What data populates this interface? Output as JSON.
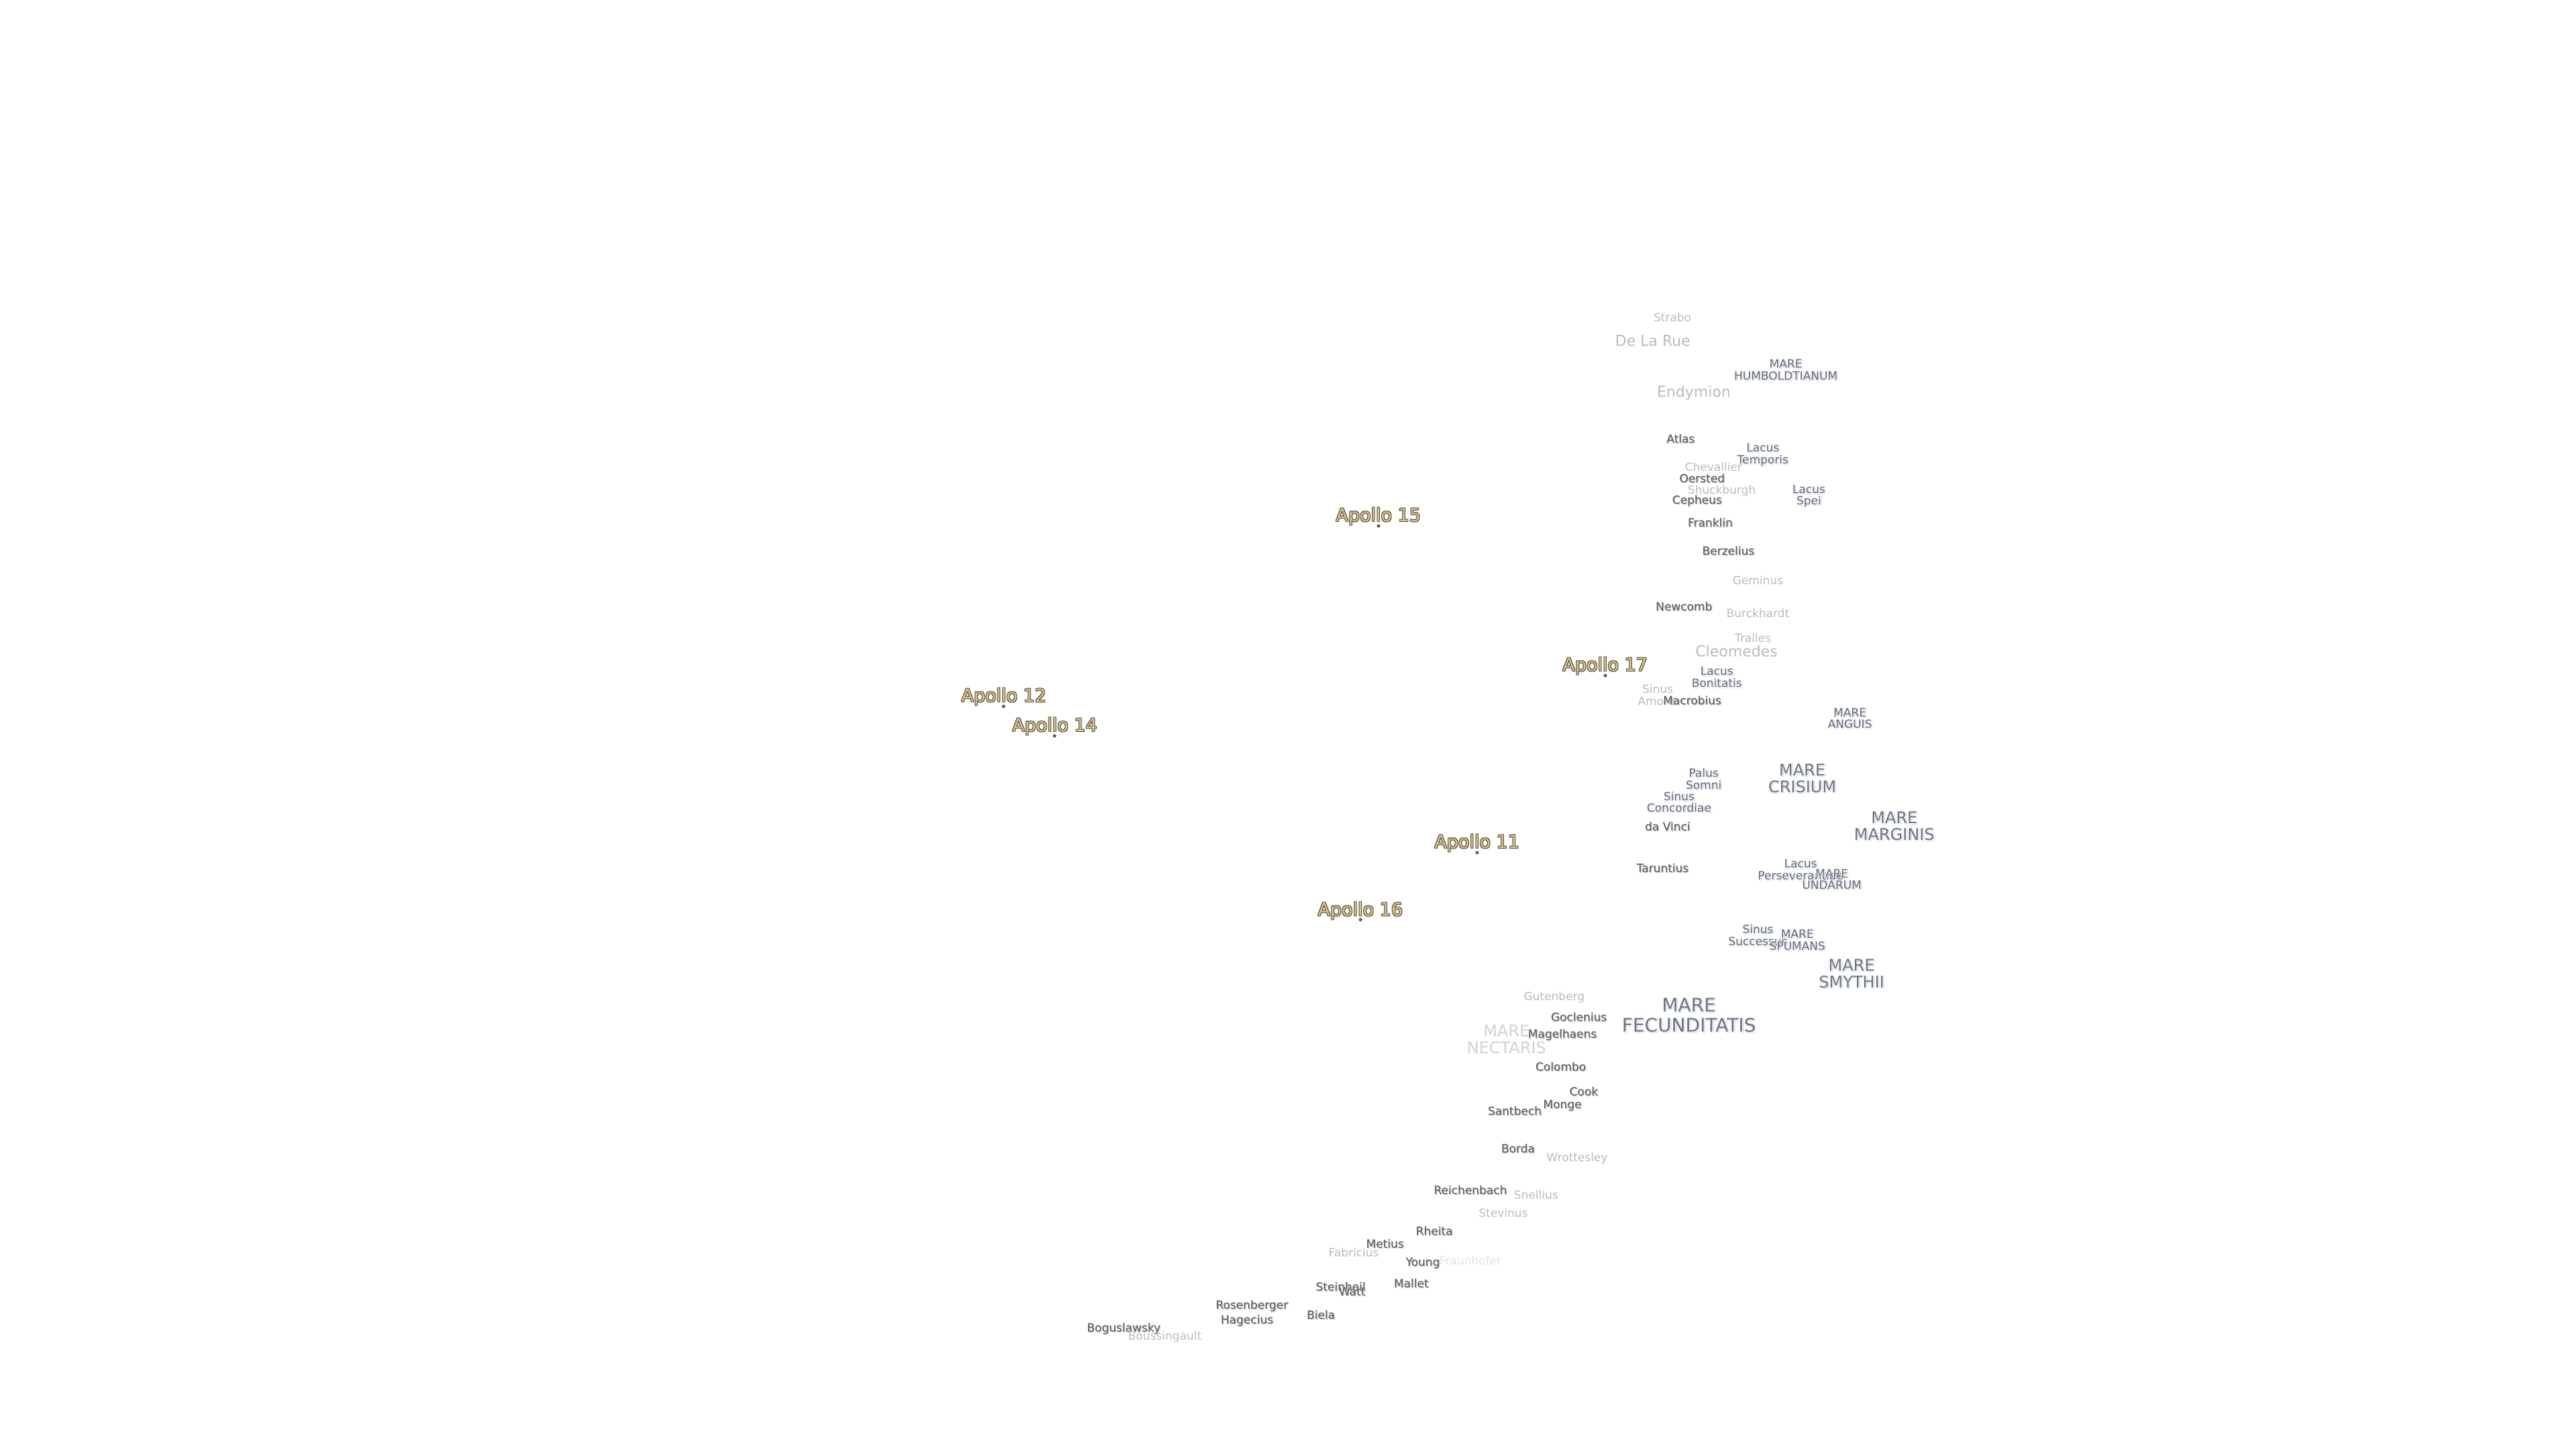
{
  "labels": [
    [
      "Strabo"
    ],
    [
      "De La Rue"
    ],
    [
      "MARE",
      "HUMBOLDTIANUM"
    ],
    [
      "Endymion"
    ],
    [
      "Atlas"
    ],
    [
      "Lacus",
      "Temporis"
    ],
    [
      "Chevallier"
    ],
    [
      "Oersted"
    ],
    [
      "Shuckburgh"
    ],
    [
      "Cepheus"
    ],
    [
      "Lacus",
      "Spei"
    ],
    [
      "Franklin"
    ],
    [
      "Berzelius"
    ],
    [
      "Apollo 15"
    ],
    [
      "Geminus"
    ],
    [
      "Newcomb"
    ],
    [
      "Burckhardt"
    ],
    [
      "Tralles"
    ],
    [
      "Cleomedes"
    ],
    [
      "Apollo 17"
    ],
    [
      "Lacus",
      "Bonitatis"
    ],
    [
      "Sinus",
      "Amoris"
    ],
    [
      "Macrobius"
    ],
    [
      "MARE",
      "ANGUIS"
    ],
    [
      "Apollo 12"
    ],
    [
      "Apollo 14"
    ],
    [
      "Palus",
      "Somni"
    ],
    [
      "MARE",
      "CRISIUM"
    ],
    [
      "Sinus",
      "Concordiae"
    ],
    [
      "MARE",
      "MARGINIS"
    ],
    [
      "da Vinci"
    ],
    [
      "Apollo 11"
    ],
    [
      "Taruntius"
    ],
    [
      "Lacus",
      "Perseverantiae"
    ],
    [
      "MARE",
      "UNDARUM"
    ],
    [
      "Apollo 16"
    ],
    [
      "Sinus",
      "Successus"
    ],
    [
      "MARE",
      "SPUMANS"
    ],
    [
      "MARE",
      "SMYTHII"
    ],
    [
      "Gutenberg"
    ],
    [
      "MARE",
      "FECUNDITATIS"
    ],
    [
      "Goclenius"
    ],
    [
      "MARE",
      "NECTARIS"
    ],
    [
      "Magelhaens"
    ],
    [
      "Colombo"
    ],
    [
      "Cook"
    ],
    [
      "Monge"
    ],
    [
      "Santbech"
    ],
    [
      "Borda"
    ],
    [
      "Wrottesley"
    ],
    [
      "Reichenbach"
    ],
    [
      "Snellius"
    ],
    [
      "Stevinus"
    ],
    [
      "Rheita"
    ],
    [
      "Metius"
    ],
    [
      "Fabricius"
    ],
    [
      "Young"
    ],
    [
      "Fraunhofer"
    ],
    [
      "Steinheil"
    ],
    [
      "Watt"
    ],
    [
      "Mallet"
    ],
    [
      "Rosenberger"
    ],
    [
      "Hagecius"
    ],
    [
      "Biela"
    ],
    [
      "Boguslawsky"
    ],
    [
      "Boussingault"
    ]
  ]
}
